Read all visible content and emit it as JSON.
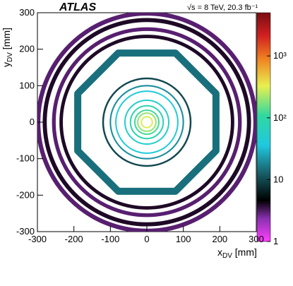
{
  "chart_data": {
    "type": "heatmap",
    "title": "",
    "experiment": "ATLAS",
    "energy_label": "√s = 8 TeV, 20.3 fb⁻¹",
    "xlabel": "x",
    "xlabel_sub": "DV",
    "xlabel_unit": " [mm]",
    "ylabel": "y",
    "ylabel_sub": "DV",
    "ylabel_unit": " [mm]",
    "xlim": [
      -300,
      300
    ],
    "ylim": [
      -300,
      300
    ],
    "x_ticks": [
      "-300",
      "-200",
      "-100",
      "0",
      "100",
      "200",
      "300"
    ],
    "y_ticks": [
      "-300",
      "-200",
      "-100",
      "0",
      "100",
      "200",
      "300"
    ],
    "z_scale": "log",
    "z_range": [
      1,
      5000
    ],
    "z_ticks": [
      "1",
      "10",
      "10²",
      "10³"
    ],
    "grid": false,
    "colors": {
      "background": "#ffffff",
      "high": "#7a0d12",
      "mid": "#e0e060",
      "low": "#20c8d8",
      "min": "#e040e0"
    },
    "structures": [
      {
        "kind": "circle",
        "radius": 298,
        "level": 3
      },
      {
        "kind": "circle",
        "radius": 280,
        "level": 4
      },
      {
        "kind": "circle",
        "radius": 255,
        "level": 3
      },
      {
        "kind": "circle",
        "radius": 235,
        "level": 4
      },
      {
        "kind": "octagon",
        "radius": 205,
        "level": 15
      },
      {
        "kind": "circle",
        "radius": 120,
        "level": 10
      },
      {
        "kind": "circle",
        "radius": 100,
        "level": 20
      },
      {
        "kind": "circle",
        "radius": 85,
        "level": 40
      },
      {
        "kind": "circle",
        "radius": 60,
        "level": 50
      },
      {
        "kind": "circle",
        "radius": 45,
        "level": 80
      },
      {
        "kind": "circle",
        "radius": 33,
        "level": 120
      },
      {
        "kind": "circle",
        "radius": 25,
        "level": 200
      },
      {
        "kind": "circle",
        "radius": 15,
        "level": 300
      }
    ]
  }
}
